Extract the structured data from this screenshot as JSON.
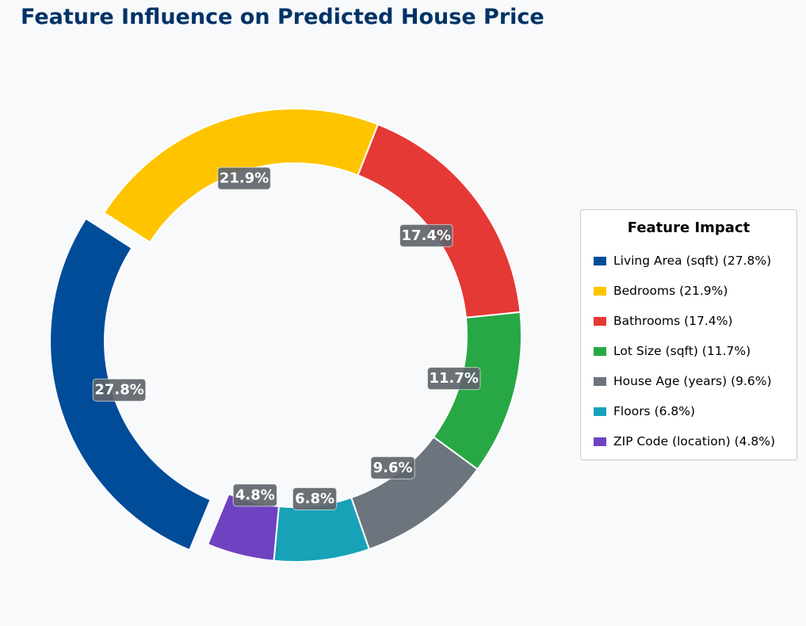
{
  "chart_data": {
    "type": "pie",
    "variant": "donut",
    "title": "Feature Influence on Predicted House Price",
    "legend_title": "Feature Impact",
    "legend_position": "right",
    "slices": [
      {
        "name": "Living Area (sqft)",
        "value": 27.8,
        "label": "27.8%",
        "legend": "Living Area (sqft) (27.8%)",
        "color": "#004c99",
        "exploded": true
      },
      {
        "name": "Bedrooms",
        "value": 21.9,
        "label": "21.9%",
        "legend": "Bedrooms (21.9%)",
        "color": "#ffc400",
        "exploded": false
      },
      {
        "name": "Bathrooms",
        "value": 17.4,
        "label": "17.4%",
        "legend": "Bathrooms (17.4%)",
        "color": "#e53935",
        "exploded": false
      },
      {
        "name": "Lot Size (sqft)",
        "value": 11.7,
        "label": "11.7%",
        "legend": "Lot Size (sqft) (11.7%)",
        "color": "#28a745",
        "exploded": false
      },
      {
        "name": "House Age (years)",
        "value": 9.6,
        "label": "9.6%",
        "legend": "House Age (years) (9.6%)",
        "color": "#6c757d",
        "exploded": false
      },
      {
        "name": "Floors",
        "value": 6.8,
        "label": "6.8%",
        "legend": "Floors (6.8%)",
        "color": "#17a2b8",
        "exploded": false
      },
      {
        "name": "ZIP Code (location)",
        "value": 4.8,
        "label": "4.8%",
        "legend": "ZIP Code (location) (4.8%)",
        "color": "#6f42c1",
        "exploded": false
      }
    ]
  }
}
